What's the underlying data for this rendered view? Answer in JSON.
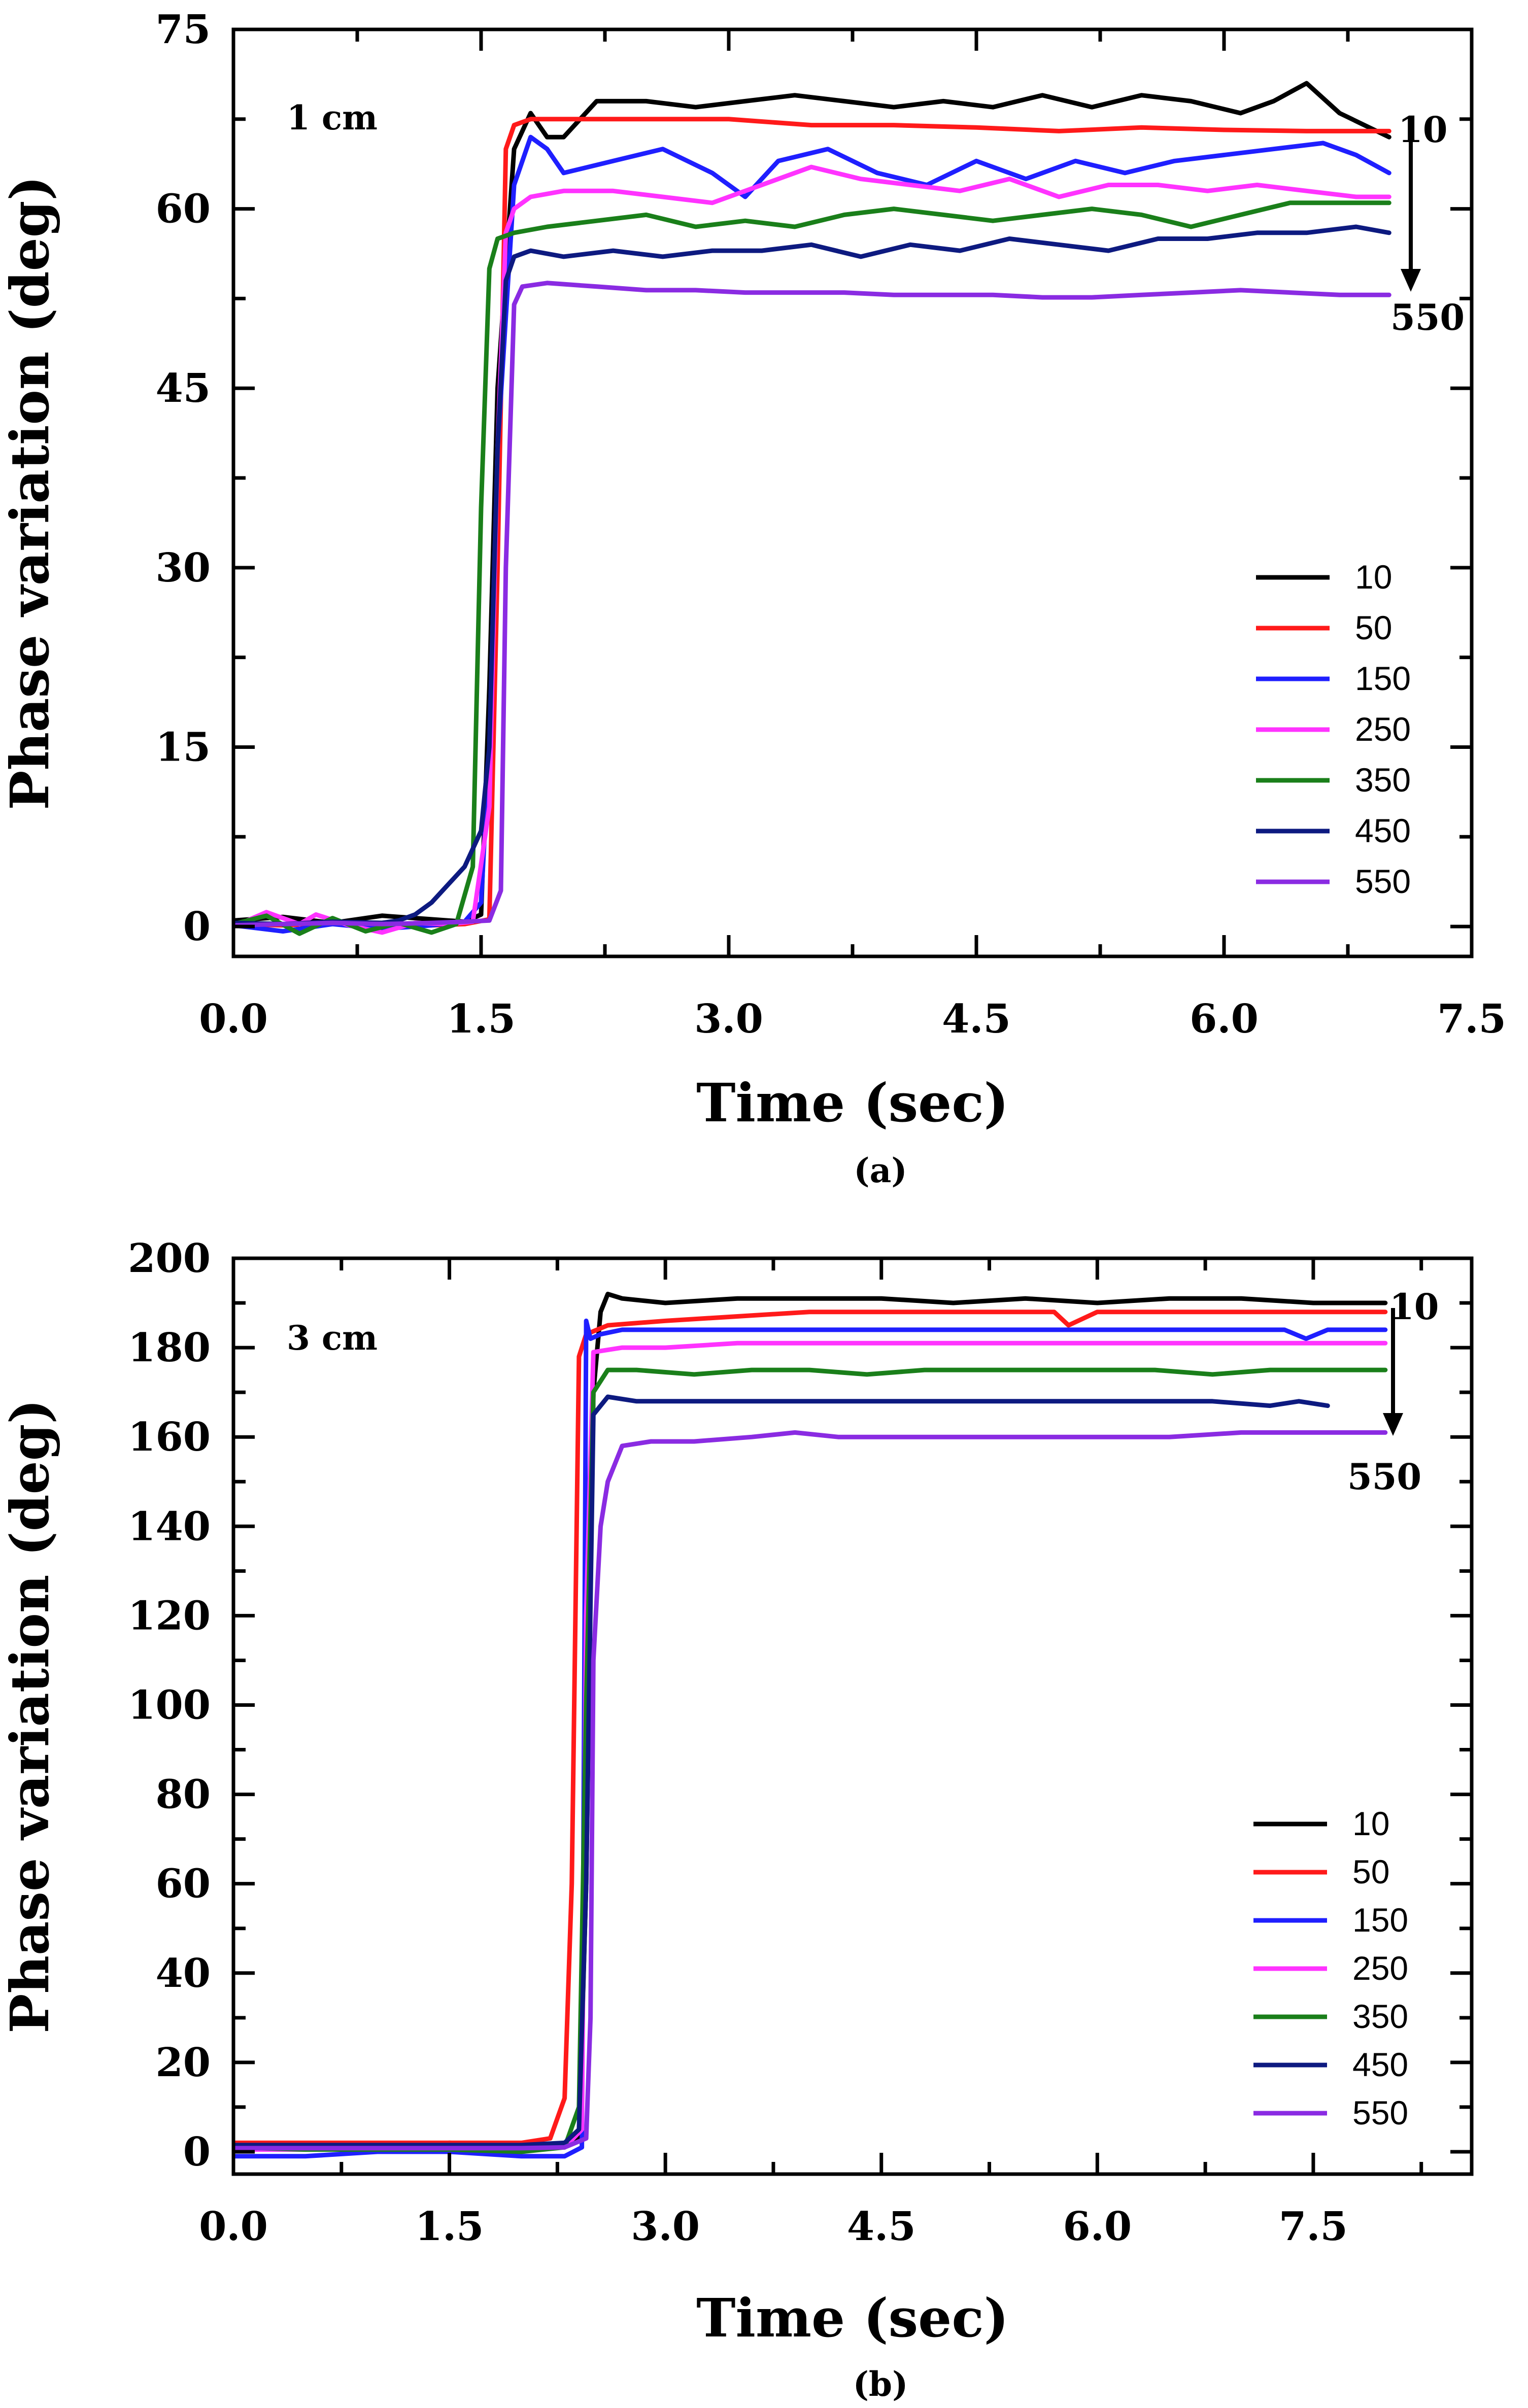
{
  "figure": {
    "panels": [
      "(a)",
      "(b)"
    ]
  },
  "colors": {
    "10": "#000000",
    "50": "#ff1a1a",
    "150": "#1f1fff",
    "250": "#ff33ff",
    "350": "#1a7f1a",
    "450": "#0d1a80",
    "550": "#8a2be2"
  },
  "chart_data": [
    {
      "type": "line",
      "panel_label": "(a)",
      "title": "",
      "annotation": "1 cm",
      "arrow_labels": {
        "top": "10",
        "bottom": "550"
      },
      "xlabel": "Time (sec)",
      "ylabel": "Phase variation (deg)",
      "xlim": [
        0,
        7.5
      ],
      "ylim": [
        -2.5,
        75
      ],
      "xticks": [
        0,
        1.5,
        3,
        4.5,
        6,
        7.5
      ],
      "xtick_labels": [
        "0.0",
        "1.5",
        "3.0",
        "4.5",
        "6.0",
        "7.5"
      ],
      "yticks": [
        0,
        15,
        30,
        45,
        60,
        75
      ],
      "ytick_labels": [
        "0",
        "15",
        "30",
        "45",
        "60",
        "75"
      ],
      "legend": {
        "position": "lower-right"
      },
      "series": [
        {
          "name": "10",
          "x": [
            0,
            0.3,
            0.6,
            0.9,
            1.2,
            1.4,
            1.5,
            1.55,
            1.6,
            1.7,
            1.8,
            1.9,
            2.0,
            2.2,
            2.5,
            2.8,
            3.1,
            3.4,
            3.7,
            4.0,
            4.3,
            4.6,
            4.9,
            5.2,
            5.5,
            5.8,
            6.1,
            6.3,
            6.5,
            6.7,
            7.0
          ],
          "y": [
            0.5,
            0.8,
            0.3,
            0.9,
            0.6,
            0.4,
            1.0,
            20,
            45,
            65,
            68,
            66,
            66,
            69,
            69,
            68.5,
            69,
            69.5,
            69,
            68.5,
            69,
            68.5,
            69.5,
            68.5,
            69.5,
            69,
            68,
            69,
            70.5,
            68,
            66
          ]
        },
        {
          "name": "50",
          "x": [
            0,
            0.3,
            0.6,
            0.9,
            1.2,
            1.4,
            1.55,
            1.6,
            1.65,
            1.7,
            1.8,
            2.0,
            2.5,
            3.0,
            3.5,
            4.0,
            4.5,
            5.0,
            5.5,
            6.0,
            6.5,
            7.0
          ],
          "y": [
            0.2,
            0.1,
            0.3,
            0.2,
            0.1,
            0.2,
            0.6,
            30,
            65,
            67,
            67.5,
            67.5,
            67.5,
            67.5,
            67,
            67,
            66.8,
            66.5,
            66.8,
            66.6,
            66.5,
            66.5
          ]
        },
        {
          "name": "150",
          "x": [
            0,
            0.3,
            0.6,
            0.9,
            1.2,
            1.4,
            1.5,
            1.55,
            1.6,
            1.7,
            1.8,
            1.9,
            2.0,
            2.3,
            2.6,
            2.9,
            3.1,
            3.3,
            3.6,
            3.9,
            4.2,
            4.5,
            4.8,
            5.1,
            5.4,
            5.7,
            6.0,
            6.3,
            6.6,
            6.8,
            7.0
          ],
          "y": [
            0.1,
            -0.4,
            0.2,
            -0.2,
            0.1,
            0.4,
            2,
            15,
            40,
            62,
            66,
            65,
            63,
            64,
            65,
            63,
            61,
            64,
            65,
            63,
            62,
            64,
            62.5,
            64,
            63,
            64,
            64.5,
            65,
            65.5,
            64.5,
            63
          ]
        },
        {
          "name": "250",
          "x": [
            0,
            0.2,
            0.4,
            0.5,
            0.7,
            0.9,
            1.1,
            1.3,
            1.45,
            1.55,
            1.6,
            1.65,
            1.7,
            1.8,
            2.0,
            2.3,
            2.6,
            2.9,
            3.2,
            3.5,
            3.8,
            4.1,
            4.4,
            4.7,
            5.0,
            5.3,
            5.6,
            5.9,
            6.2,
            6.5,
            6.8,
            7.0
          ],
          "y": [
            0,
            1.2,
            0.2,
            1.0,
            0.1,
            -0.5,
            0.3,
            0.2,
            0.4,
            10,
            40,
            58,
            60,
            61,
            61.5,
            61.5,
            61,
            60.5,
            62,
            63.5,
            62.5,
            62,
            61.5,
            62.5,
            61,
            62,
            62,
            61.5,
            62,
            61.5,
            61,
            61
          ]
        },
        {
          "name": "350",
          "x": [
            0,
            0.2,
            0.4,
            0.6,
            0.8,
            1.0,
            1.2,
            1.35,
            1.45,
            1.5,
            1.55,
            1.6,
            1.7,
            1.9,
            2.2,
            2.5,
            2.8,
            3.1,
            3.4,
            3.7,
            4.0,
            4.3,
            4.6,
            4.9,
            5.2,
            5.5,
            5.8,
            6.1,
            6.4,
            6.7,
            7.0
          ],
          "y": [
            0.2,
            0.9,
            -0.6,
            0.7,
            -0.4,
            0.3,
            -0.5,
            0.2,
            5,
            35,
            55,
            57.5,
            58,
            58.5,
            59,
            59.5,
            58.5,
            59,
            58.5,
            59.5,
            60,
            59.5,
            59,
            59.5,
            60,
            59.5,
            58.5,
            59.5,
            60.5,
            60.5,
            60.5
          ]
        },
        {
          "name": "450",
          "x": [
            0,
            0.3,
            0.6,
            0.9,
            1.0,
            1.1,
            1.2,
            1.3,
            1.4,
            1.5,
            1.55,
            1.6,
            1.65,
            1.7,
            1.8,
            2.0,
            2.3,
            2.6,
            2.9,
            3.2,
            3.5,
            3.8,
            4.1,
            4.4,
            4.7,
            5.0,
            5.3,
            5.6,
            5.9,
            6.2,
            6.5,
            6.8,
            7.0
          ],
          "y": [
            0.3,
            0.2,
            0.4,
            0.3,
            0.5,
            1.0,
            2.0,
            3.5,
            5.0,
            8.0,
            15,
            40,
            54,
            56,
            56.5,
            56,
            56.5,
            56,
            56.5,
            56.5,
            57,
            56,
            57,
            56.5,
            57.5,
            57,
            56.5,
            57.5,
            57.5,
            58,
            58,
            58.5,
            58
          ]
        },
        {
          "name": "550",
          "x": [
            0,
            0.3,
            0.6,
            0.9,
            1.2,
            1.4,
            1.55,
            1.62,
            1.65,
            1.7,
            1.75,
            1.9,
            2.2,
            2.5,
            2.8,
            3.1,
            3.4,
            3.7,
            4.0,
            4.3,
            4.6,
            4.9,
            5.2,
            5.5,
            5.8,
            6.1,
            6.4,
            6.7,
            7.0
          ],
          "y": [
            0.1,
            0.2,
            0.3,
            0.2,
            0.3,
            0.4,
            0.5,
            3,
            30,
            52,
            53.5,
            53.8,
            53.5,
            53.2,
            53.2,
            53,
            53,
            53,
            52.8,
            52.8,
            52.8,
            52.6,
            52.6,
            52.8,
            53,
            53.2,
            53,
            52.8,
            52.8
          ]
        }
      ]
    },
    {
      "type": "line",
      "panel_label": "(b)",
      "title": "",
      "annotation": "3 cm",
      "arrow_labels": {
        "top": "10",
        "bottom": "550"
      },
      "xlabel": "Time (sec)",
      "ylabel": "Phase variation (deg)",
      "xlim": [
        0,
        8.6
      ],
      "ylim": [
        -5,
        200
      ],
      "xticks": [
        0,
        1.5,
        3,
        4.5,
        6,
        7.5
      ],
      "xtick_labels": [
        "0.0",
        "1.5",
        "3.0",
        "4.5",
        "6.0",
        "7.5"
      ],
      "yticks": [
        0,
        20,
        40,
        60,
        80,
        100,
        120,
        140,
        160,
        180,
        200
      ],
      "ytick_labels": [
        "0",
        "20",
        "40",
        "60",
        "80",
        "100",
        "120",
        "140",
        "160",
        "180",
        "200"
      ],
      "legend": {
        "position": "lower-right"
      },
      "series": [
        {
          "name": "10",
          "x": [
            0,
            0.5,
            1.0,
            1.5,
            2.0,
            2.3,
            2.4,
            2.45,
            2.5,
            2.55,
            2.6,
            2.7,
            3.0,
            3.5,
            4.0,
            4.5,
            5.0,
            5.5,
            6.0,
            6.5,
            7.0,
            7.5,
            8.0
          ],
          "y": [
            1,
            1,
            1,
            2,
            1.5,
            1,
            3,
            60,
            170,
            188,
            192,
            191,
            190,
            191,
            191,
            191,
            190,
            191,
            190,
            191,
            191,
            190,
            190
          ]
        },
        {
          "name": "50",
          "x": [
            0,
            0.5,
            1.0,
            1.5,
            2.0,
            2.2,
            2.3,
            2.35,
            2.4,
            2.45,
            2.6,
            3.0,
            3.5,
            4.0,
            4.5,
            5.0,
            5.5,
            5.7,
            5.8,
            6.0,
            6.5,
            7.0,
            7.5,
            8.0
          ],
          "y": [
            2,
            2,
            2,
            2,
            2,
            3,
            12,
            60,
            178,
            183,
            185,
            186,
            187,
            188,
            188,
            188,
            188,
            188,
            185,
            188,
            188,
            188,
            188,
            188
          ]
        },
        {
          "name": "150",
          "x": [
            0,
            0.5,
            1.0,
            1.5,
            2.0,
            2.3,
            2.42,
            2.45,
            2.48,
            2.55,
            2.7,
            3.0,
            3.5,
            4.0,
            4.5,
            5.0,
            5.5,
            6.0,
            6.5,
            7.0,
            7.3,
            7.45,
            7.6,
            8.0
          ],
          "y": [
            -1,
            -1,
            0,
            0,
            -1,
            -1,
            1,
            186,
            182,
            183,
            184,
            184,
            184,
            184,
            184,
            184,
            184,
            184,
            184,
            184,
            184,
            182,
            184,
            184
          ]
        },
        {
          "name": "250",
          "x": [
            0,
            0.5,
            1.0,
            1.5,
            2.0,
            2.3,
            2.42,
            2.45,
            2.5,
            2.7,
            3.0,
            3.5,
            4.0,
            4.5,
            5.0,
            5.5,
            6.0,
            6.5,
            7.0,
            7.5,
            8.0
          ],
          "y": [
            0.5,
            0.5,
            0.8,
            0.5,
            0.5,
            1,
            5,
            120,
            179,
            180,
            180,
            181,
            181,
            181,
            181,
            181,
            181,
            181,
            181,
            181,
            181
          ]
        },
        {
          "name": "350",
          "x": [
            0,
            0.5,
            1.0,
            1.5,
            2.0,
            2.3,
            2.4,
            2.45,
            2.5,
            2.6,
            2.8,
            3.2,
            3.6,
            4.0,
            4.4,
            4.8,
            5.2,
            5.6,
            6.0,
            6.4,
            6.8,
            7.2,
            7.6,
            8.0
          ],
          "y": [
            1,
            0.5,
            0.5,
            0.5,
            0,
            1,
            10,
            100,
            170,
            175,
            175,
            174,
            175,
            175,
            174,
            175,
            175,
            175,
            175,
            175,
            174,
            175,
            175,
            175
          ]
        },
        {
          "name": "450",
          "x": [
            0,
            0.5,
            1.0,
            1.5,
            2.0,
            2.3,
            2.4,
            2.45,
            2.5,
            2.6,
            2.8,
            3.2,
            3.6,
            4.0,
            4.4,
            4.8,
            5.2,
            5.6,
            6.0,
            6.4,
            6.8,
            7.2,
            7.4,
            7.6
          ],
          "y": [
            1.5,
            1.5,
            1.5,
            1.5,
            1.5,
            2,
            5,
            60,
            165,
            169,
            168,
            168,
            168,
            168,
            168,
            168,
            168,
            168,
            168,
            168,
            168,
            167,
            168,
            167
          ]
        },
        {
          "name": "550",
          "x": [
            0,
            0.5,
            1.0,
            1.5,
            2.0,
            2.3,
            2.45,
            2.48,
            2.5,
            2.55,
            2.6,
            2.7,
            2.9,
            3.2,
            3.6,
            3.9,
            4.2,
            4.6,
            5.0,
            5.5,
            6.0,
            6.5,
            7.0,
            7.5,
            8.0
          ],
          "y": [
            0.8,
            0.8,
            0.8,
            0.8,
            0.8,
            1,
            3,
            30,
            110,
            140,
            150,
            158,
            159,
            159,
            160,
            161,
            160,
            160,
            160,
            160,
            160,
            160,
            161,
            161,
            161
          ]
        }
      ]
    }
  ]
}
